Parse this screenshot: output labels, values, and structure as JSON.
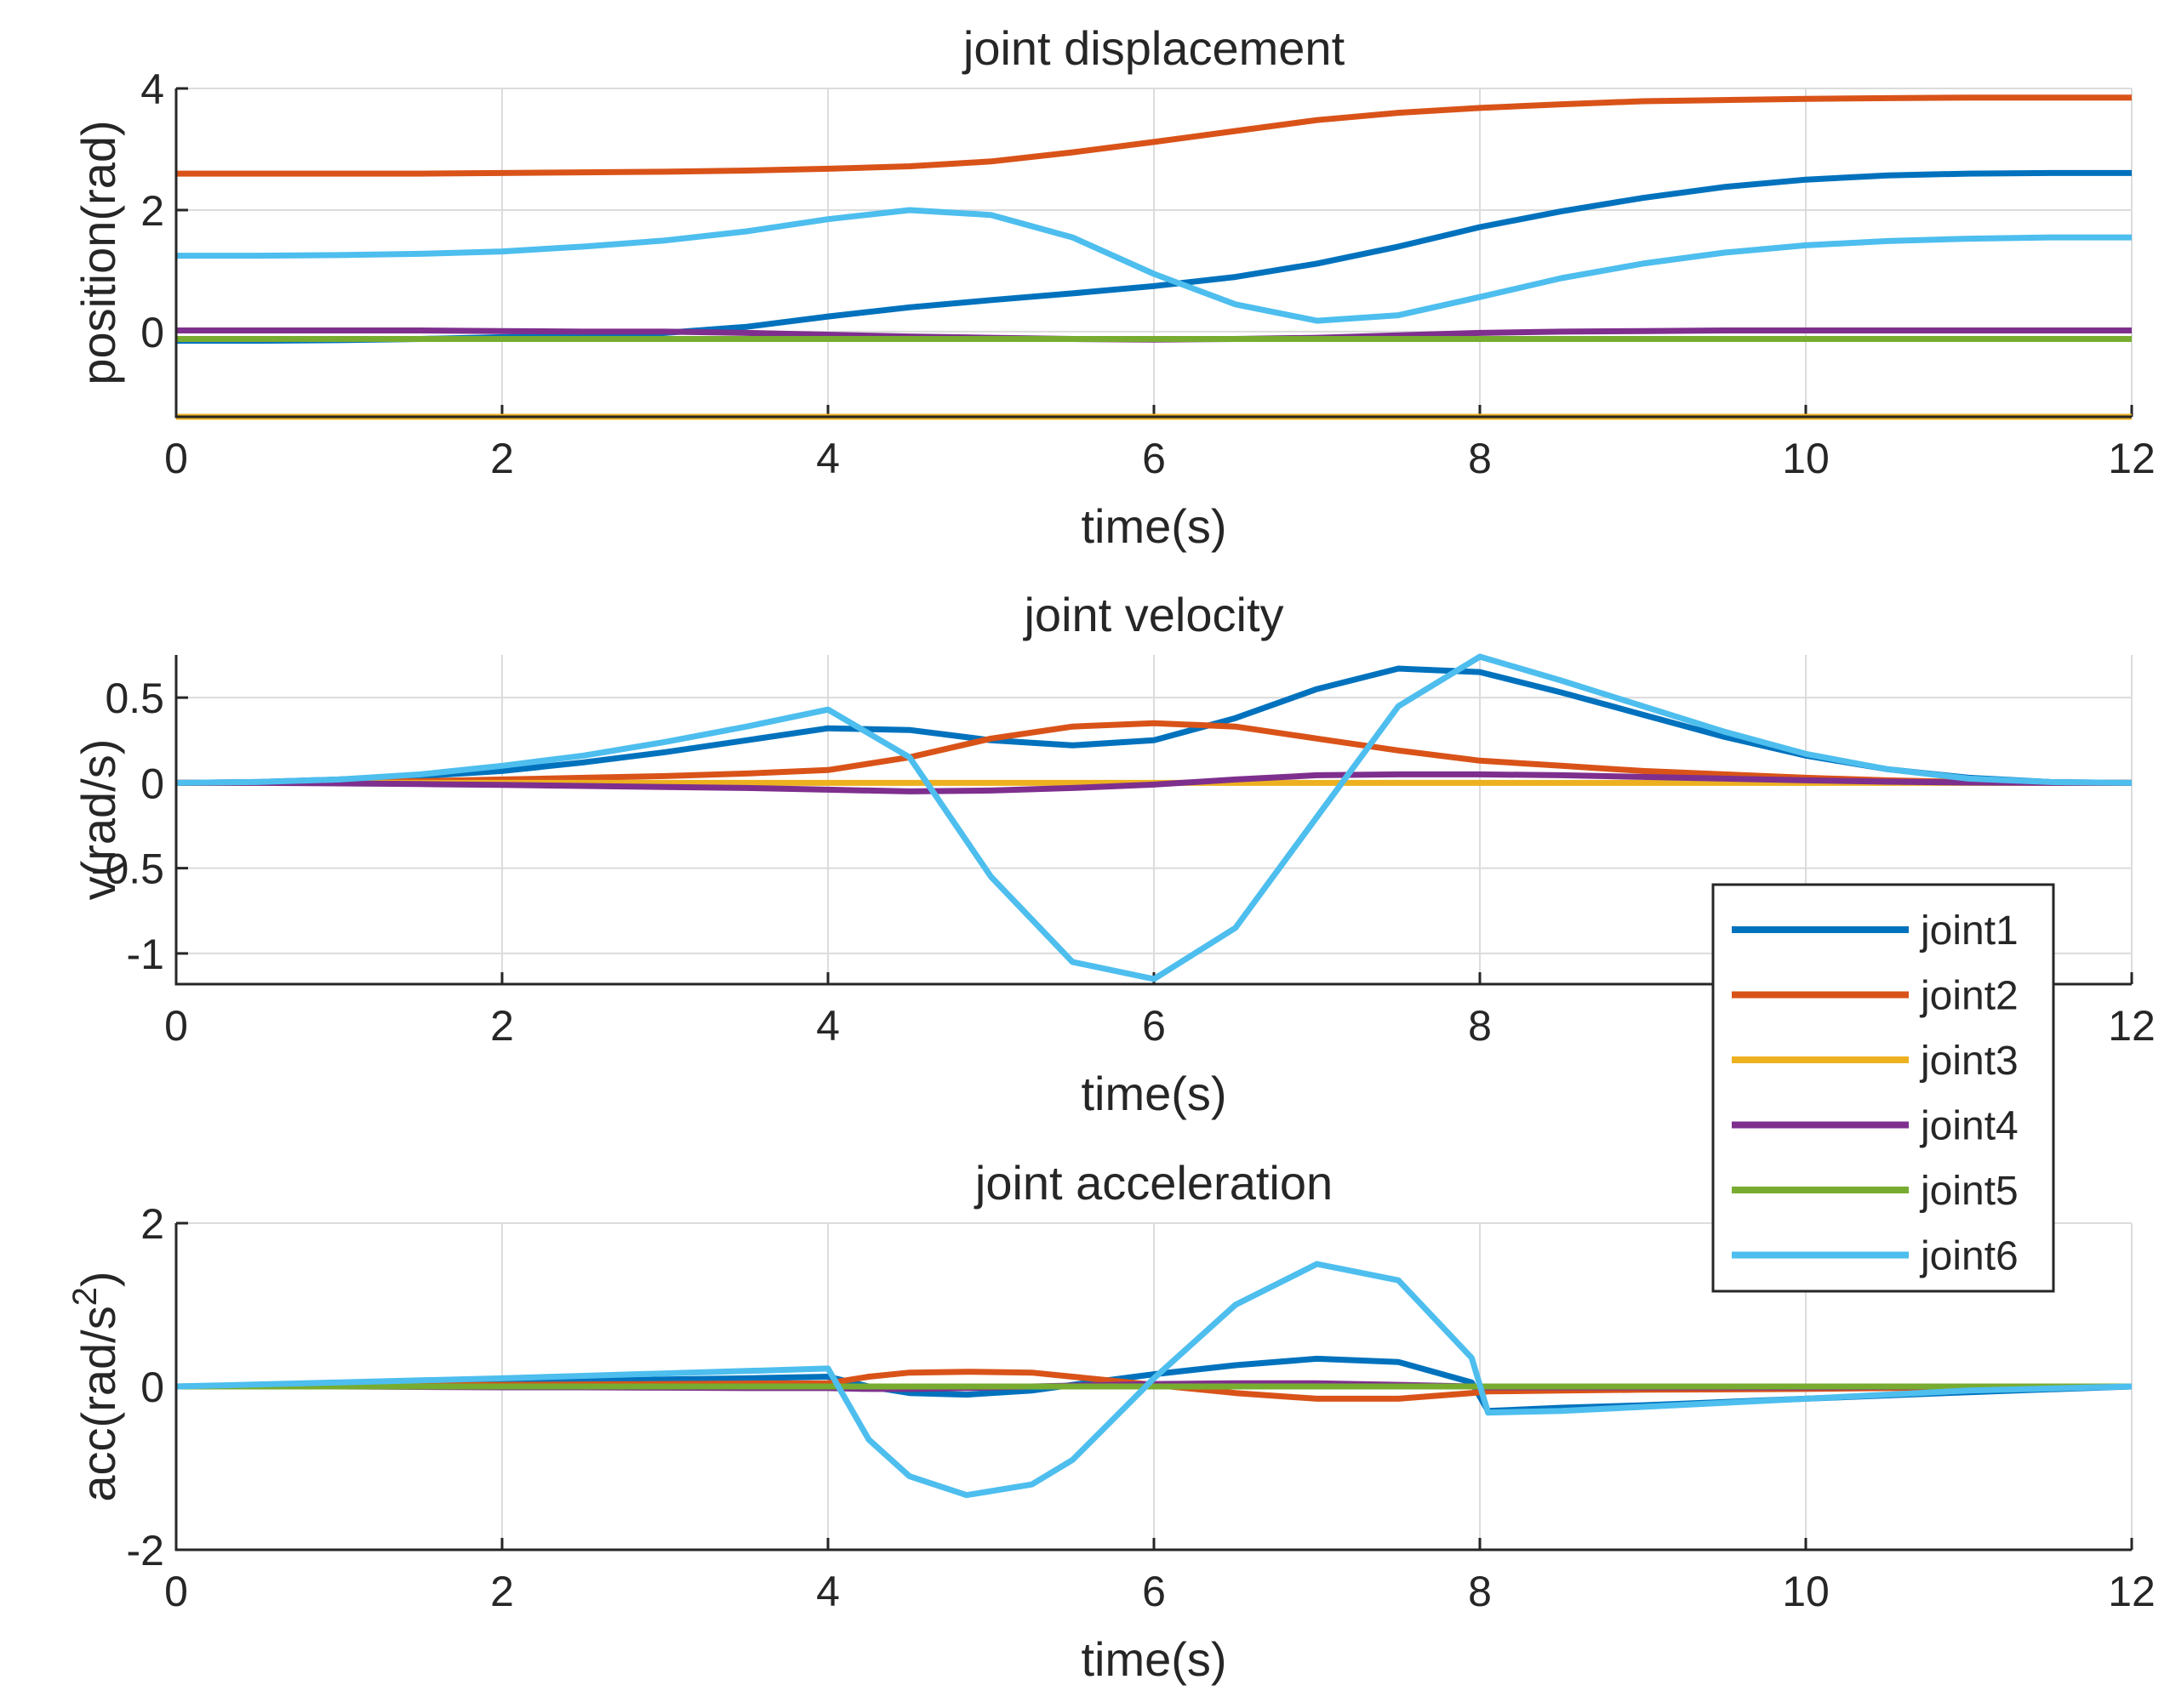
{
  "legend": [
    "joint1",
    "joint2",
    "joint3",
    "joint4",
    "joint5",
    "joint6"
  ],
  "colors": [
    "#0072BD",
    "#D95319",
    "#EDB120",
    "#7E2F8E",
    "#77AC30",
    "#4DBEEE"
  ],
  "chart_data": [
    {
      "type": "line",
      "title": "joint displacement",
      "xlabel": "time(s)",
      "ylabel": "position(rad)",
      "xlim": [
        0,
        12
      ],
      "ylim": [
        -1.4,
        4
      ],
      "xticks": [
        "0",
        "2",
        "4",
        "6",
        "8",
        "10",
        "12"
      ],
      "yticks": [
        "0",
        "2",
        "4"
      ],
      "x": [
        0,
        0.5,
        1,
        1.5,
        2,
        2.5,
        3,
        3.5,
        4,
        4.5,
        5,
        5.5,
        6,
        6.5,
        7,
        7.5,
        8,
        8.5,
        9,
        9.5,
        10,
        10.5,
        11,
        11.5,
        12
      ],
      "series": [
        {
          "name": "joint1",
          "values": [
            -0.15,
            -0.15,
            -0.14,
            -0.12,
            -0.09,
            -0.06,
            -0.02,
            0.08,
            0.25,
            0.4,
            0.52,
            0.63,
            0.75,
            0.9,
            1.12,
            1.4,
            1.72,
            1.98,
            2.2,
            2.38,
            2.5,
            2.57,
            2.6,
            2.61,
            2.61
          ]
        },
        {
          "name": "joint2",
          "values": [
            2.6,
            2.6,
            2.6,
            2.6,
            2.61,
            2.62,
            2.63,
            2.65,
            2.68,
            2.72,
            2.8,
            2.95,
            3.12,
            3.3,
            3.48,
            3.6,
            3.68,
            3.74,
            3.79,
            3.81,
            3.83,
            3.84,
            3.85,
            3.85,
            3.85
          ]
        },
        {
          "name": "joint3",
          "values": [
            -1.4,
            -1.4,
            -1.4,
            -1.4,
            -1.4,
            -1.4,
            -1.4,
            -1.4,
            -1.4,
            -1.4,
            -1.4,
            -1.4,
            -1.4,
            -1.4,
            -1.4,
            -1.4,
            -1.4,
            -1.4,
            -1.4,
            -1.4,
            -1.4,
            -1.4,
            -1.4,
            -1.4,
            -1.4
          ]
        },
        {
          "name": "joint4",
          "values": [
            0.02,
            0.02,
            0.02,
            0.02,
            0.01,
            0.0,
            0.0,
            -0.02,
            -0.05,
            -0.08,
            -0.1,
            -0.12,
            -0.13,
            -0.12,
            -0.1,
            -0.06,
            -0.02,
            0.0,
            0.01,
            0.02,
            0.02,
            0.02,
            0.02,
            0.02,
            0.02
          ]
        },
        {
          "name": "joint5",
          "values": [
            -0.12,
            -0.12,
            -0.12,
            -0.12,
            -0.12,
            -0.12,
            -0.12,
            -0.12,
            -0.12,
            -0.12,
            -0.12,
            -0.12,
            -0.12,
            -0.12,
            -0.12,
            -0.12,
            -0.12,
            -0.12,
            -0.12,
            -0.12,
            -0.12,
            -0.12,
            -0.12,
            -0.12,
            -0.12
          ]
        },
        {
          "name": "joint6",
          "values": [
            1.25,
            1.25,
            1.26,
            1.28,
            1.32,
            1.4,
            1.5,
            1.65,
            1.85,
            2.0,
            1.92,
            1.55,
            0.95,
            0.45,
            0.18,
            0.27,
            0.57,
            0.88,
            1.12,
            1.3,
            1.42,
            1.49,
            1.53,
            1.55,
            1.55
          ]
        }
      ]
    },
    {
      "type": "line",
      "title": "joint velocity",
      "xlabel": "time(s)",
      "ylabel": "v(rad/s)",
      "xlim": [
        0,
        12
      ],
      "ylim": [
        -1.18,
        0.75
      ],
      "xticks": [
        "0",
        "2",
        "4",
        "6",
        "8",
        "10",
        "12"
      ],
      "yticks": [
        "0.5",
        "0",
        "-0.5",
        "-1"
      ],
      "x": [
        0,
        0.5,
        1,
        1.5,
        2,
        2.5,
        3,
        3.5,
        4,
        4.5,
        5,
        5.5,
        6,
        6.5,
        7,
        7.5,
        8,
        8.5,
        9,
        9.5,
        10,
        10.5,
        11,
        11.5,
        12
      ],
      "series": [
        {
          "name": "joint1",
          "values": [
            0,
            0.005,
            0.02,
            0.04,
            0.07,
            0.12,
            0.18,
            0.25,
            0.32,
            0.31,
            0.25,
            0.22,
            0.25,
            0.38,
            0.55,
            0.67,
            0.65,
            0.53,
            0.4,
            0.27,
            0.16,
            0.08,
            0.03,
            0.005,
            0
          ]
        },
        {
          "name": "joint2",
          "values": [
            0,
            0.001,
            0.005,
            0.01,
            0.02,
            0.03,
            0.04,
            0.055,
            0.075,
            0.15,
            0.26,
            0.33,
            0.35,
            0.33,
            0.26,
            0.19,
            0.13,
            0.1,
            0.07,
            0.05,
            0.03,
            0.015,
            0.005,
            0.001,
            0
          ]
        },
        {
          "name": "joint3",
          "values": [
            0,
            0,
            0,
            0,
            0,
            0,
            0,
            0,
            0,
            0,
            0,
            0,
            0,
            0,
            0,
            0,
            0,
            0,
            0,
            0,
            0,
            0,
            0,
            0,
            0
          ]
        },
        {
          "name": "joint4",
          "values": [
            0,
            0,
            -0.003,
            -0.007,
            -0.012,
            -0.018,
            -0.024,
            -0.03,
            -0.04,
            -0.05,
            -0.045,
            -0.03,
            -0.01,
            0.02,
            0.045,
            0.05,
            0.05,
            0.045,
            0.035,
            0.025,
            0.015,
            0.007,
            0.002,
            0,
            0
          ]
        },
        {
          "name": "joint6",
          "values": [
            0,
            0.005,
            0.02,
            0.05,
            0.1,
            0.16,
            0.24,
            0.33,
            0.43,
            0.15,
            -0.55,
            -1.05,
            -1.15,
            -0.85,
            -0.2,
            0.45,
            0.74,
            0.6,
            0.45,
            0.3,
            0.17,
            0.08,
            0.025,
            0.005,
            0
          ]
        }
      ]
    },
    {
      "type": "line",
      "title": "joint acceleration",
      "xlabel": "time(s)",
      "ylabel": "acc(rad/s",
      "ylabel_sup": "2",
      "ylabel_end": ")",
      "xlim": [
        0,
        12
      ],
      "ylim": [
        -2,
        2
      ],
      "xticks": [
        "0",
        "2",
        "4",
        "6",
        "8",
        "10",
        "12"
      ],
      "yticks": [
        "2",
        "0",
        "-2"
      ],
      "x": [
        0,
        0.5,
        1,
        1.5,
        2,
        2.5,
        3,
        3.5,
        4,
        4.25,
        4.5,
        4.85,
        5.25,
        5.5,
        6,
        6.5,
        7,
        7.5,
        7.95,
        8.05,
        8.5,
        9,
        10,
        11,
        12
      ],
      "series": [
        {
          "name": "joint1",
          "values": [
            0,
            0.01,
            0.025,
            0.04,
            0.055,
            0.07,
            0.085,
            0.1,
            0.12,
            0.0,
            -0.08,
            -0.1,
            -0.05,
            0.02,
            0.15,
            0.26,
            0.34,
            0.3,
            0.05,
            -0.3,
            -0.26,
            -0.23,
            -0.15,
            -0.07,
            0
          ]
        },
        {
          "name": "joint2",
          "values": [
            0,
            0.005,
            0.01,
            0.015,
            0.02,
            0.025,
            0.03,
            0.035,
            0.04,
            0.12,
            0.17,
            0.18,
            0.17,
            0.12,
            0.02,
            -0.08,
            -0.15,
            -0.15,
            -0.08,
            -0.06,
            -0.05,
            -0.04,
            -0.03,
            -0.01,
            0
          ]
        },
        {
          "name": "joint3",
          "values": [
            0,
            0,
            0,
            0,
            0,
            0,
            0,
            0,
            0,
            0,
            0,
            0,
            0,
            0,
            0,
            0,
            0,
            0,
            0,
            0,
            0,
            0,
            0,
            0,
            0
          ]
        },
        {
          "name": "joint4",
          "values": [
            0,
            0,
            0,
            -0.005,
            -0.01,
            -0.01,
            -0.015,
            -0.02,
            -0.02,
            -0.03,
            -0.03,
            -0.02,
            0.0,
            0.01,
            0.03,
            0.04,
            0.04,
            0.02,
            0.0,
            -0.01,
            -0.01,
            -0.01,
            -0.01,
            0,
            0
          ]
        },
        {
          "name": "joint5",
          "values": [
            0,
            0,
            0,
            0,
            0,
            0,
            0,
            0,
            0,
            0,
            0,
            0,
            0,
            0,
            0,
            0,
            0,
            0,
            0,
            0,
            0,
            0,
            0,
            0,
            0
          ]
        },
        {
          "name": "joint6",
          "values": [
            0,
            0.025,
            0.05,
            0.075,
            0.1,
            0.13,
            0.16,
            0.19,
            0.22,
            -0.65,
            -1.1,
            -1.33,
            -1.2,
            -0.9,
            0.1,
            1.0,
            1.5,
            1.3,
            0.35,
            -0.32,
            -0.3,
            -0.25,
            -0.15,
            -0.05,
            0
          ]
        }
      ]
    }
  ]
}
